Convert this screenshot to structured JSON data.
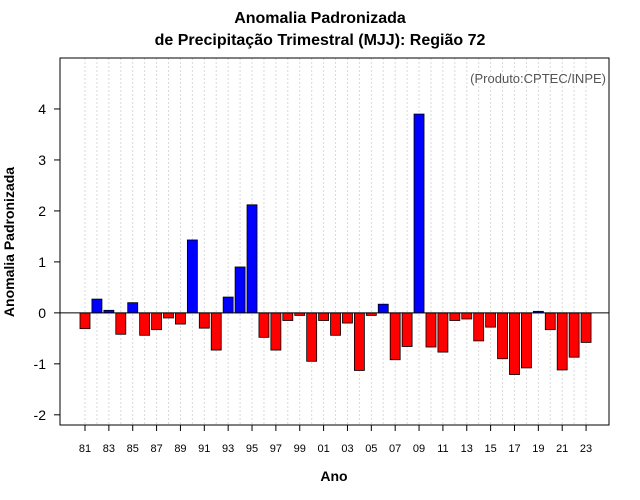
{
  "chart_data": {
    "type": "bar",
    "title": "Anomalia Padronizada",
    "subtitle": "de Precipitação Trimestral (MJJ): Região 72",
    "xlabel": "Ano",
    "ylabel": "Anomalia Padronizada",
    "annotation": "(Produto:CPTEC/INPE)",
    "ylim": [
      -2.2,
      5.0
    ],
    "yticks": [
      -2,
      -1,
      0,
      1,
      2,
      3,
      4
    ],
    "grid": "vertical-dotted",
    "positive_color": "#0000ff",
    "negative_color": "#ff0000",
    "x": [
      "81",
      "82",
      "83",
      "84",
      "85",
      "86",
      "87",
      "88",
      "89",
      "90",
      "91",
      "92",
      "93",
      "94",
      "95",
      "96",
      "97",
      "98",
      "99",
      "00",
      "01",
      "02",
      "03",
      "04",
      "05",
      "06",
      "07",
      "08",
      "09",
      "10",
      "11",
      "12",
      "13",
      "14",
      "15",
      "16",
      "17",
      "18",
      "19",
      "20",
      "21",
      "22",
      "23"
    ],
    "xtick_labels": [
      "81",
      "83",
      "85",
      "87",
      "89",
      "91",
      "93",
      "95",
      "97",
      "99",
      "01",
      "03",
      "05",
      "07",
      "09",
      "11",
      "13",
      "15",
      "17",
      "19",
      "21",
      "23"
    ],
    "values": [
      -0.31,
      0.27,
      0.05,
      -0.42,
      0.2,
      -0.44,
      -0.33,
      -0.1,
      -0.22,
      1.43,
      -0.3,
      -0.73,
      0.31,
      0.9,
      2.12,
      -0.48,
      -0.73,
      -0.15,
      -0.05,
      -0.95,
      -0.15,
      -0.44,
      -0.2,
      -1.13,
      -0.05,
      0.17,
      -0.92,
      -0.66,
      3.9,
      -0.67,
      -0.77,
      -0.15,
      -0.12,
      -0.55,
      -0.28,
      -0.9,
      -1.21,
      -1.08,
      0.03,
      -0.33,
      -1.12,
      -0.87,
      -0.58
    ]
  }
}
